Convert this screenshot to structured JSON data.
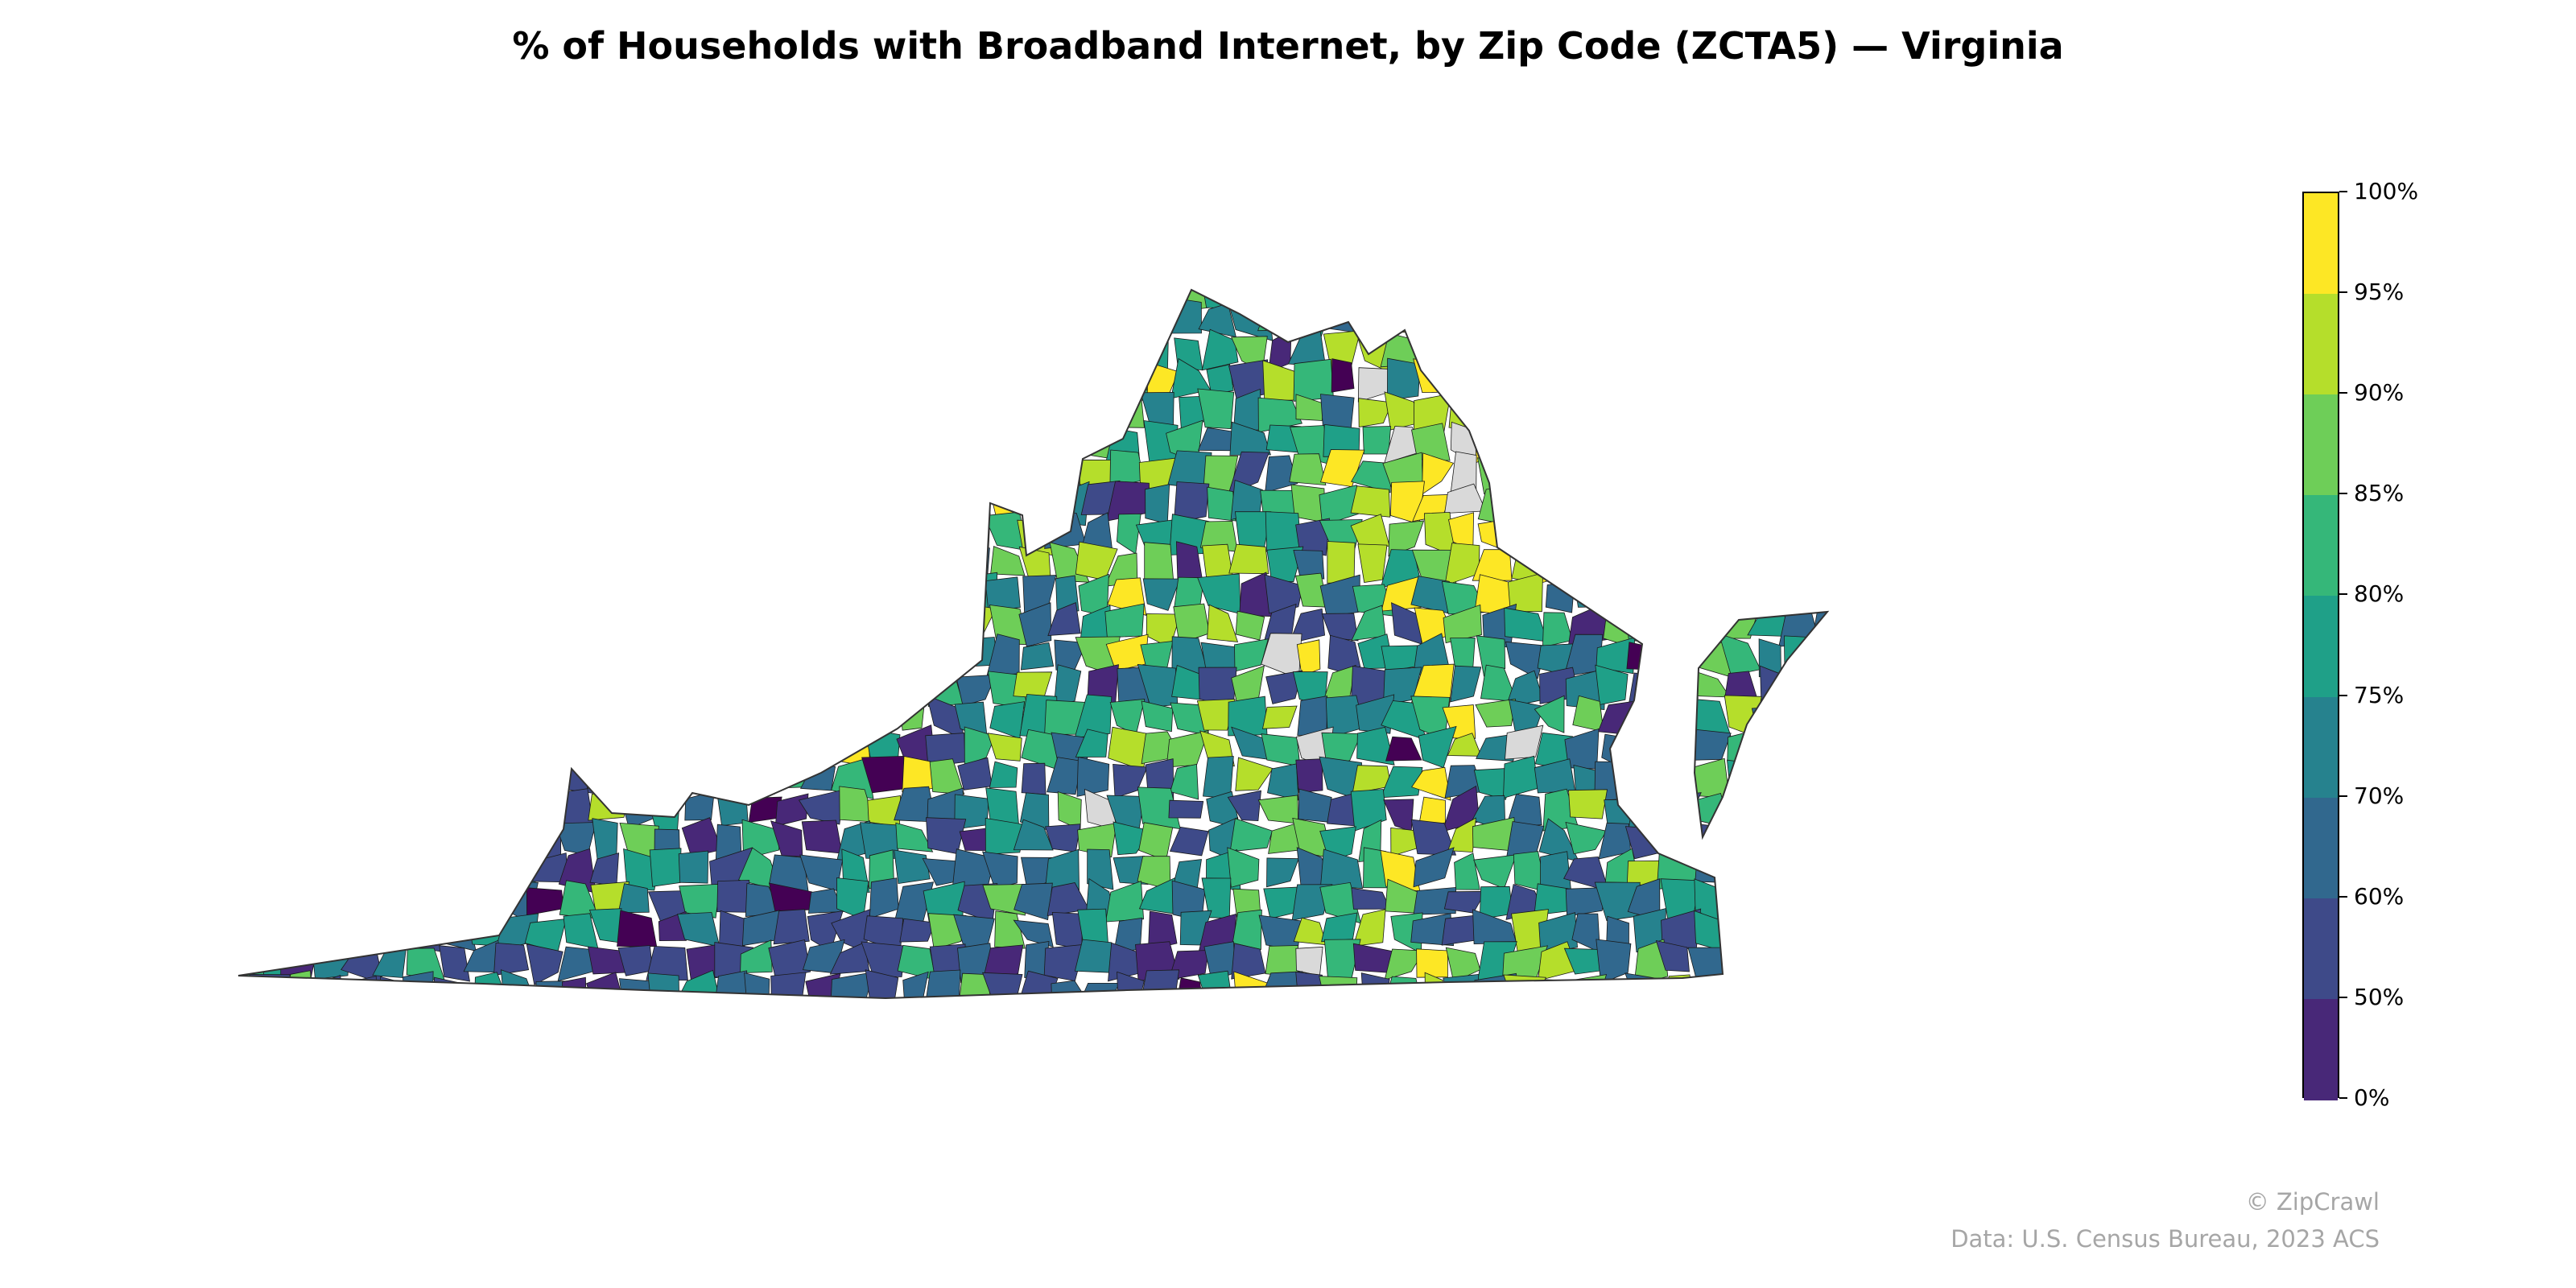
{
  "title": "% of Households with Broadband Internet, by Zip Code (ZCTA5) — Virginia",
  "region": "Virginia",
  "colorbar": {
    "ticks": [
      "100%",
      "95%",
      "90%",
      "85%",
      "80%",
      "75%",
      "70%",
      "60%",
      "50%",
      "0%"
    ],
    "bins": [
      {
        "from": 0,
        "to": 50,
        "color": "#440154"
      },
      {
        "from": 50,
        "to": 60,
        "color": "#482878"
      },
      {
        "from": 60,
        "to": 70,
        "color": "#3e4a89"
      },
      {
        "from": 70,
        "to": 75,
        "color": "#31688e"
      },
      {
        "from": 75,
        "to": 80,
        "color": "#26828e"
      },
      {
        "from": 80,
        "to": 85,
        "color": "#1fa088"
      },
      {
        "from": 85,
        "to": 90,
        "color": "#35b779"
      },
      {
        "from": 90,
        "to": 95,
        "color": "#6ece58"
      },
      {
        "from": 95,
        "to": 100,
        "color": "#b5de2b"
      },
      {
        "from": 100,
        "to": 100,
        "color": "#fde725"
      }
    ],
    "no_data_color": "#d9d9d9"
  },
  "credits": {
    "watermark": "© ZipCrawl",
    "source": "Data: U.S. Census Bureau, 2023 ACS"
  }
}
